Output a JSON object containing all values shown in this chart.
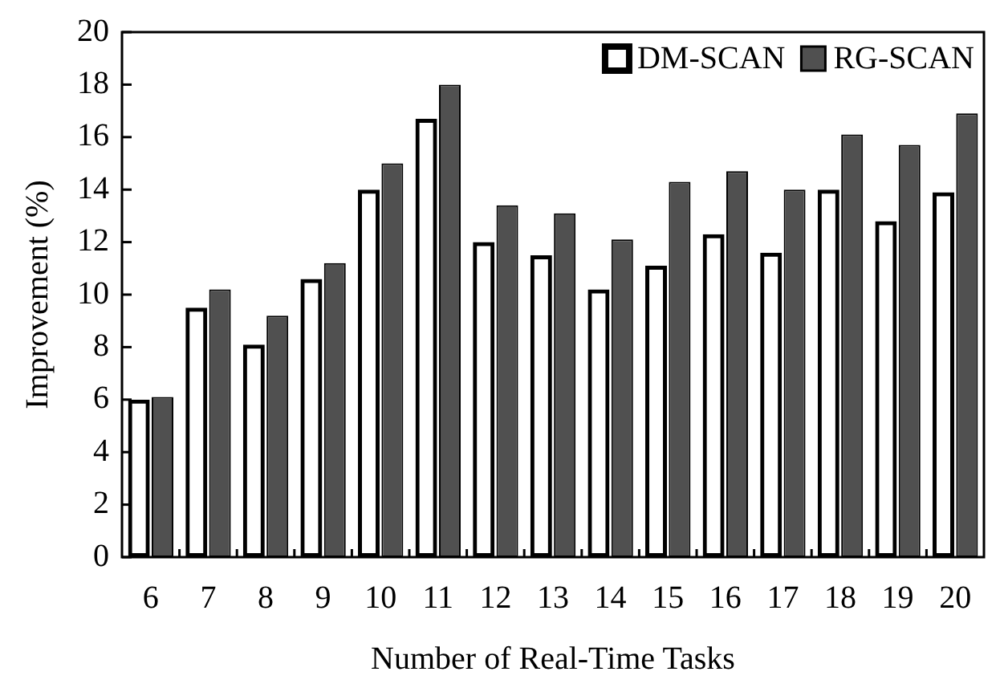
{
  "chart_data": {
    "type": "bar",
    "xlabel": "Number of Real-Time Tasks",
    "ylabel": "Improvement (%)",
    "categories": [
      "6",
      "7",
      "8",
      "9",
      "10",
      "11",
      "12",
      "13",
      "14",
      "15",
      "16",
      "17",
      "18",
      "19",
      "20"
    ],
    "series": [
      {
        "name": "DM-SCAN",
        "color": "#000000",
        "values": [
          6,
          9.5,
          8.1,
          10.6,
          14,
          16.7,
          12,
          11.5,
          10.2,
          11.1,
          12.3,
          11.6,
          14,
          12.8,
          13.9
        ]
      },
      {
        "name": "RG-SCAN",
        "color": "#505050",
        "values": [
          6.1,
          10.2,
          9.2,
          11.2,
          15,
          18,
          13.4,
          13.1,
          12.1,
          14.3,
          14.7,
          14,
          16.1,
          15.7,
          16.9
        ]
      }
    ],
    "ylim": [
      0,
      20
    ],
    "yticks": [
      0,
      2,
      4,
      6,
      8,
      10,
      12,
      14,
      16,
      18,
      20
    ],
    "grid": false,
    "legend": "top right"
  }
}
